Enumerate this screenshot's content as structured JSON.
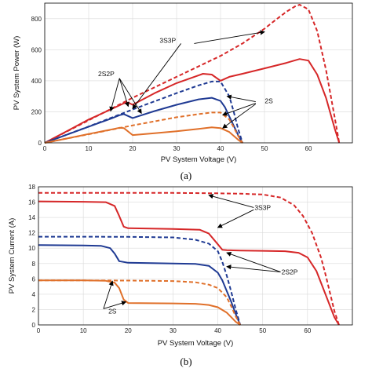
{
  "chart_data": [
    {
      "type": "line",
      "panel_label": "(a)",
      "xlabel": "PV System Voltage (V)",
      "ylabel": "PV System Power (W)",
      "xlim": [
        0,
        70
      ],
      "ylim": [
        0,
        900
      ],
      "xticks": [
        0,
        10,
        20,
        30,
        40,
        50,
        60
      ],
      "yticks": [
        0,
        200,
        400,
        600,
        800
      ],
      "grid": true,
      "series": [
        {
          "color": "#d62728",
          "dash": true,
          "x": [
            0,
            10,
            20,
            30,
            40,
            45,
            50,
            52,
            55,
            57,
            58,
            60,
            62,
            64,
            66,
            67
          ],
          "y": [
            0,
            145,
            290,
            425,
            560,
            640,
            735,
            780,
            845,
            880,
            890,
            860,
            720,
            470,
            160,
            0
          ]
        },
        {
          "color": "#d62728",
          "dash": false,
          "x": [
            0,
            5,
            10,
            15,
            18,
            19,
            20,
            25,
            30,
            36,
            38,
            40,
            42,
            45,
            50,
            55,
            58,
            60,
            62,
            64,
            66,
            67
          ],
          "y": [
            0,
            75,
            150,
            215,
            255,
            260,
            245,
            320,
            385,
            445,
            440,
            400,
            425,
            445,
            480,
            515,
            540,
            530,
            440,
            290,
            90,
            0
          ]
        },
        {
          "color": "#1f3a93",
          "dash": true,
          "x": [
            0,
            10,
            20,
            30,
            35,
            38,
            40,
            42,
            43,
            44,
            45
          ],
          "y": [
            0,
            105,
            215,
            320,
            370,
            395,
            395,
            300,
            200,
            90,
            0
          ]
        },
        {
          "color": "#1f3a93",
          "dash": false,
          "x": [
            0,
            5,
            10,
            15,
            17,
            18,
            20,
            25,
            30,
            35,
            38,
            40,
            41,
            42,
            43,
            44,
            45
          ],
          "y": [
            0,
            52,
            104,
            155,
            178,
            185,
            160,
            205,
            245,
            280,
            290,
            270,
            230,
            170,
            110,
            50,
            0
          ]
        },
        {
          "color": "#e0702a",
          "dash": true,
          "x": [
            0,
            10,
            20,
            30,
            35,
            38,
            40,
            42,
            43,
            44,
            45
          ],
          "y": [
            0,
            55,
            112,
            165,
            185,
            195,
            195,
            150,
            100,
            45,
            0
          ]
        },
        {
          "color": "#e0702a",
          "dash": false,
          "x": [
            0,
            5,
            10,
            15,
            17,
            18,
            20,
            25,
            30,
            35,
            38,
            40,
            42,
            43,
            44,
            45
          ],
          "y": [
            0,
            28,
            57,
            85,
            97,
            95,
            50,
            62,
            75,
            90,
            100,
            95,
            70,
            45,
            20,
            0
          ]
        }
      ],
      "annotations": [
        {
          "text": "3S3P",
          "x": 28,
          "y": 660
        },
        {
          "text": "2S2P",
          "x": 14,
          "y": 445
        },
        {
          "text": "2S",
          "x": 51,
          "y": 270
        }
      ]
    },
    {
      "type": "line",
      "panel_label": "(b)",
      "xlabel": "PV System Voltage (V)",
      "ylabel": "PV System Current (A)",
      "xlim": [
        0,
        70
      ],
      "ylim": [
        0,
        18
      ],
      "xticks": [
        0,
        10,
        20,
        30,
        40,
        50,
        60
      ],
      "yticks": [
        0,
        2,
        4,
        6,
        8,
        10,
        12,
        14,
        16,
        18
      ],
      "grid": true,
      "series": [
        {
          "color": "#d62728",
          "dash": true,
          "x": [
            0,
            10,
            20,
            30,
            40,
            45,
            50,
            54,
            57,
            59,
            61,
            63,
            64,
            65,
            66,
            67
          ],
          "y": [
            17.2,
            17.2,
            17.2,
            17.2,
            17.15,
            17.1,
            17.0,
            16.6,
            15.6,
            14.2,
            12.0,
            8.8,
            6.6,
            4.2,
            1.8,
            0
          ]
        },
        {
          "color": "#d62728",
          "dash": false,
          "x": [
            0,
            10,
            15,
            17,
            18,
            19,
            20,
            25,
            30,
            36,
            38,
            40,
            41,
            42,
            45,
            50,
            55,
            58,
            60,
            62,
            63,
            64,
            65,
            66,
            67
          ],
          "y": [
            16.1,
            16.05,
            16.0,
            15.5,
            14.2,
            12.8,
            12.6,
            12.55,
            12.5,
            12.4,
            11.9,
            10.5,
            9.8,
            9.75,
            9.7,
            9.65,
            9.6,
            9.4,
            8.8,
            7.0,
            5.5,
            4.0,
            2.5,
            1.0,
            0
          ]
        },
        {
          "color": "#1f3a93",
          "dash": true,
          "x": [
            0,
            10,
            20,
            30,
            35,
            38,
            40,
            41,
            42,
            43,
            44,
            45
          ],
          "y": [
            11.5,
            11.5,
            11.48,
            11.4,
            11.1,
            10.6,
            9.6,
            8.2,
            6.4,
            4.3,
            2.0,
            0
          ]
        },
        {
          "color": "#1f3a93",
          "dash": false,
          "x": [
            0,
            10,
            14,
            16,
            17,
            18,
            20,
            25,
            30,
            35,
            38,
            40,
            41,
            42,
            43,
            44,
            45
          ],
          "y": [
            10.4,
            10.35,
            10.3,
            10.0,
            9.3,
            8.3,
            8.1,
            8.05,
            8.0,
            7.95,
            7.7,
            6.8,
            5.8,
            4.4,
            3.0,
            1.4,
            0
          ]
        },
        {
          "color": "#e0702a",
          "dash": true,
          "x": [
            0,
            10,
            20,
            30,
            35,
            38,
            40,
            42,
            43,
            44,
            45
          ],
          "y": [
            5.8,
            5.8,
            5.78,
            5.72,
            5.55,
            5.25,
            4.8,
            3.6,
            2.4,
            1.1,
            0
          ]
        },
        {
          "color": "#e0702a",
          "dash": false,
          "x": [
            0,
            10,
            15,
            17,
            18,
            19,
            20,
            25,
            30,
            35,
            38,
            40,
            42,
            43,
            44,
            45
          ],
          "y": [
            5.8,
            5.8,
            5.75,
            5.5,
            4.8,
            3.3,
            2.85,
            2.82,
            2.8,
            2.75,
            2.6,
            2.3,
            1.6,
            1.0,
            0.4,
            0
          ]
        }
      ],
      "annotations": [
        {
          "text": "3S3P",
          "x": 50,
          "y": 15.3
        },
        {
          "text": "2S2P",
          "x": 56,
          "y": 6.9
        },
        {
          "text": "2S",
          "x": 16.5,
          "y": 1.8
        }
      ]
    }
  ]
}
